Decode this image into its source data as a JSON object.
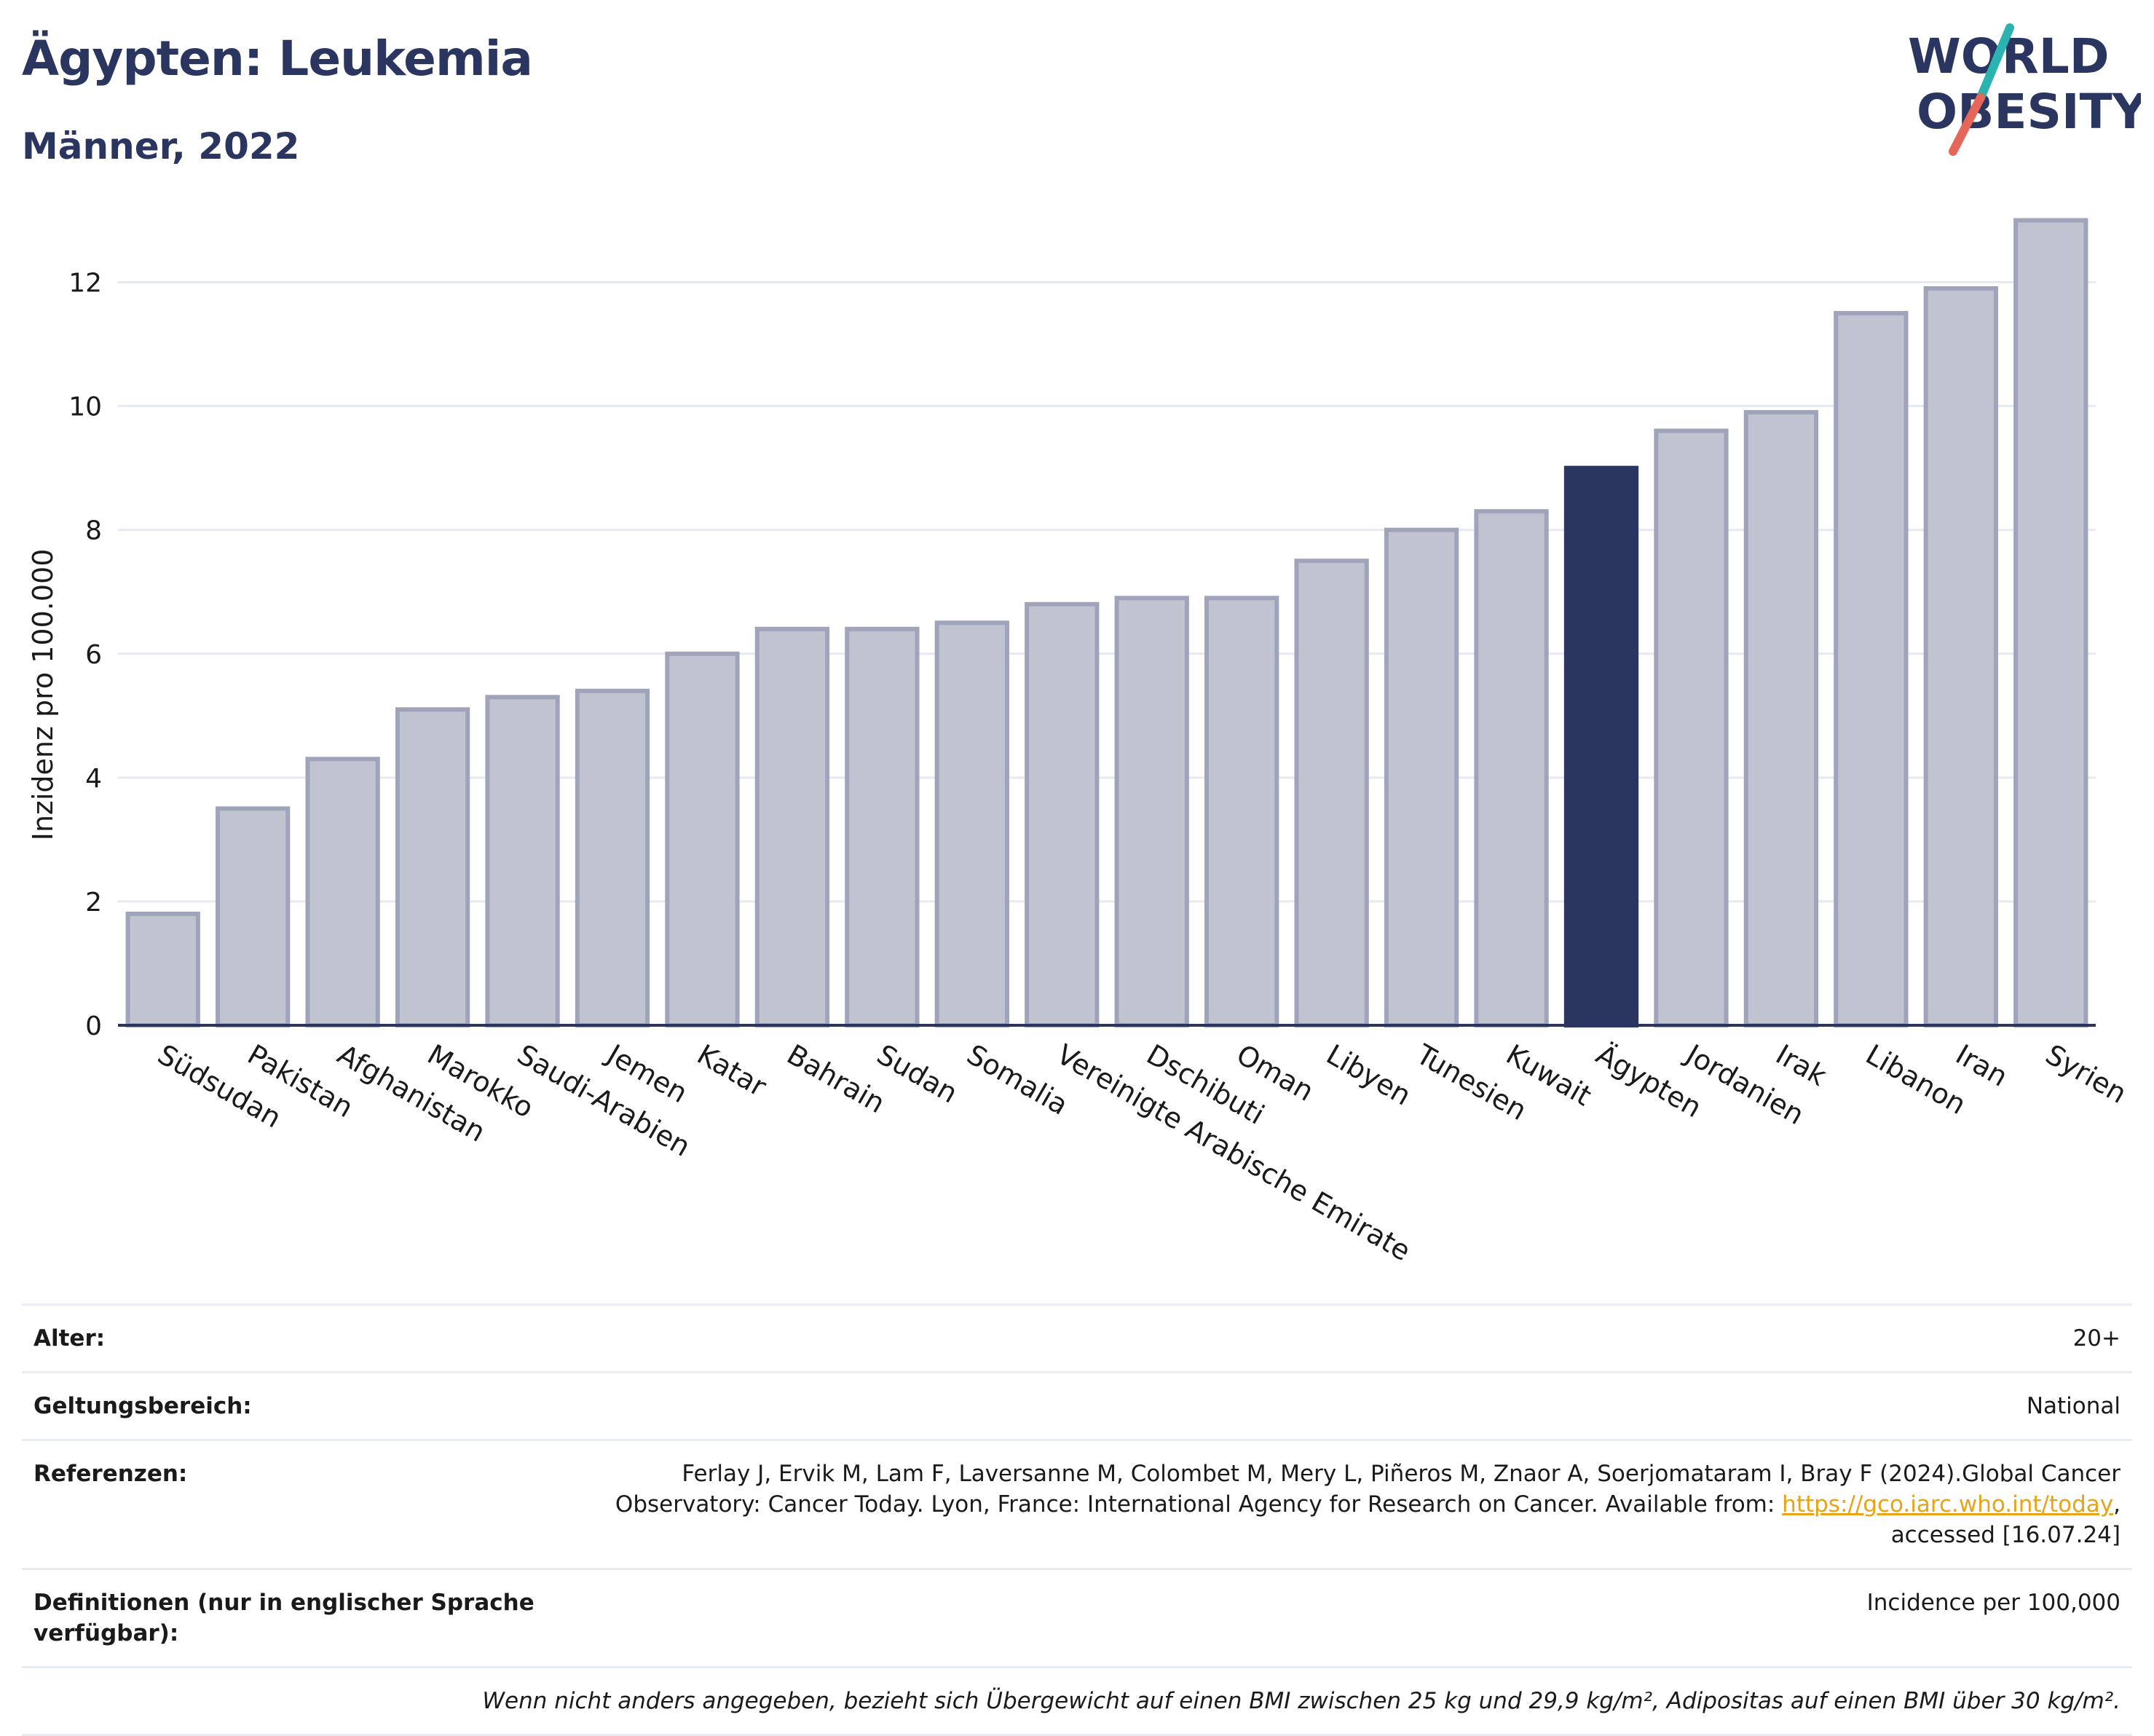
{
  "header": {
    "title": "Ägypten: Leukemia",
    "subtitle": "Männer, 2022"
  },
  "logo": {
    "line1": "WORLD",
    "line2": "OBESITY",
    "color": "#2a3560",
    "accent_teal": "#2bb3b1",
    "accent_red": "#e5675a"
  },
  "colors": {
    "bar": "#c0c3d0",
    "bar_border": "#9fa4bb",
    "highlight": "#2a3560",
    "grid": "#e6e9f0",
    "axis": "#2a3560"
  },
  "chart_data": {
    "type": "bar",
    "ylabel": "Inzidenz pro 100.000",
    "ylim": [
      0,
      13.5
    ],
    "yticks": [
      0,
      2,
      4,
      6,
      8,
      10,
      12
    ],
    "highlight": "Ägypten",
    "categories": [
      "Südsudan",
      "Pakistan",
      "Afghanistan",
      "Marokko",
      "Saudi-Arabien",
      "Jemen",
      "Katar",
      "Bahrain",
      "Sudan",
      "Somalia",
      "Vereinigte Arabische Emirate",
      "Dschibuti",
      "Oman",
      "Libyen",
      "Tunesien",
      "Kuwait",
      "Ägypten",
      "Jordanien",
      "Irak",
      "Libanon",
      "Iran",
      "Syrien"
    ],
    "values": [
      1.8,
      3.5,
      4.3,
      5.1,
      5.3,
      5.4,
      6.0,
      6.4,
      6.4,
      6.5,
      6.8,
      6.9,
      6.9,
      7.5,
      8.0,
      8.3,
      9.0,
      9.6,
      9.9,
      11.5,
      11.9,
      13.0
    ],
    "grid": true
  },
  "meta": {
    "age_label": "Alter:",
    "age_value": "20+",
    "scope_label": "Geltungsbereich:",
    "scope_value": "National",
    "ref_label": "Referenzen:",
    "ref_text_1": "Ferlay J, Ervik M, Lam F, Laversanne M, Colombet M, Mery L, Piñeros M, Znaor A, Soerjomataram I, Bray F (2024).Global Cancer",
    "ref_text_2": "Observatory: Cancer Today. Lyon, France: International Agency for Research on Cancer. Available from: ",
    "ref_link": "https://gco.iarc.who.int/today",
    "ref_text_3": ",",
    "ref_text_4": "accessed [16.07.24]",
    "def_label": "Definitionen (nur in englischer Sprache verfügbar):",
    "def_value": "Incidence per 100,000",
    "note": "Wenn nicht anders angegeben, bezieht sich Übergewicht auf einen BMI zwischen 25 kg und 29,9 kg/m², Adipositas auf einen BMI über 30 kg/m²."
  }
}
